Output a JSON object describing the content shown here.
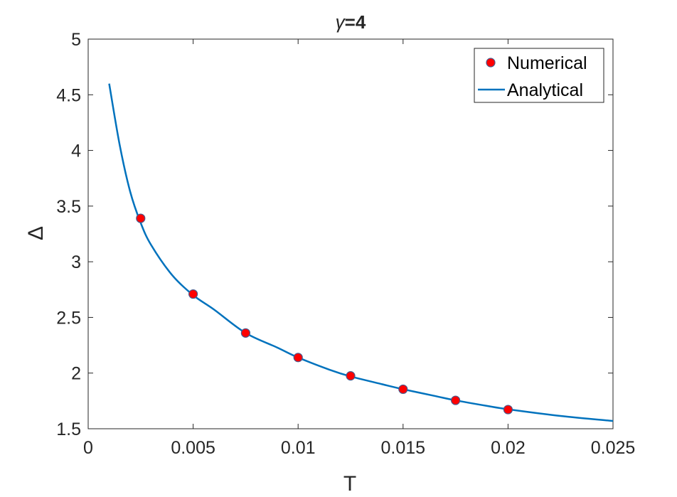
{
  "chart_data": {
    "type": "line",
    "title_symbol": "γ",
    "title_suffix": "=4",
    "xlabel": "T",
    "ylabel": "Δ",
    "xlim": [
      0,
      0.025
    ],
    "ylim": [
      1.5,
      5
    ],
    "x_ticks": [
      0,
      0.005,
      0.01,
      0.015,
      0.02,
      0.025
    ],
    "x_tick_labels": [
      "0",
      "0.005",
      "0.01",
      "0.015",
      "0.02",
      "0.025"
    ],
    "y_ticks": [
      1.5,
      2,
      2.5,
      3,
      3.5,
      4,
      4.5,
      5
    ],
    "y_tick_labels": [
      "1.5",
      "2",
      "2.5",
      "3",
      "3.5",
      "4",
      "4.5",
      "5"
    ],
    "grid": false,
    "legend_position": "top-right",
    "series": [
      {
        "name": "Numerical",
        "kind": "scatter",
        "marker_face_color": "#ff0000",
        "marker_edge_color": "#4a5a8c",
        "x": [
          0.0025,
          0.005,
          0.0075,
          0.01,
          0.0125,
          0.015,
          0.0175,
          0.02
        ],
        "y": [
          3.39,
          2.71,
          2.36,
          2.14,
          1.975,
          1.855,
          1.755,
          1.672
        ]
      },
      {
        "name": "Analytical",
        "kind": "line",
        "color": "#0072bd",
        "x": [
          0.001,
          0.0015,
          0.002,
          0.0025,
          0.003,
          0.004,
          0.005,
          0.006,
          0.0075,
          0.009,
          0.01,
          0.0115,
          0.0125,
          0.014,
          0.015,
          0.0165,
          0.0175,
          0.019,
          0.02,
          0.0225,
          0.025
        ],
        "y": [
          4.6,
          4.05,
          3.63,
          3.35,
          3.15,
          2.88,
          2.7,
          2.57,
          2.36,
          2.23,
          2.14,
          2.03,
          1.97,
          1.9,
          1.855,
          1.795,
          1.755,
          1.705,
          1.675,
          1.615,
          1.57
        ]
      }
    ]
  }
}
